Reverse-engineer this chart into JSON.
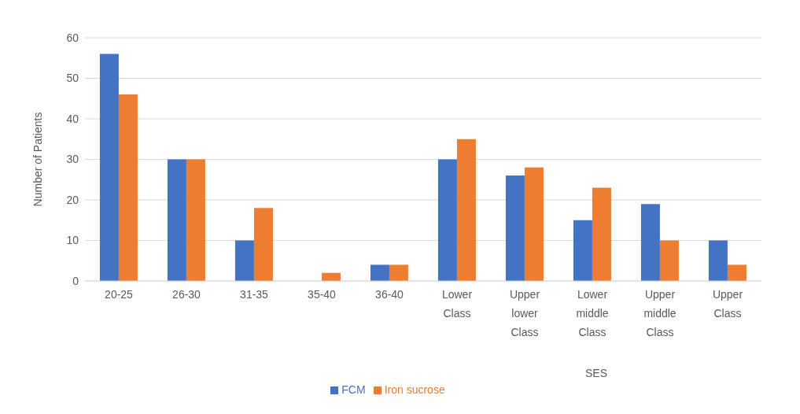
{
  "chart_data": {
    "type": "bar",
    "categories": [
      "20-25",
      "26-30",
      "31-35",
      "35-40",
      "36-40",
      "Lower Class",
      "Upper lower Class",
      "Lower middle Class",
      "Upper middle Class",
      "Upper Class"
    ],
    "series": [
      {
        "name": "FCM",
        "color": "#4472c4",
        "values": [
          56,
          30,
          10,
          0,
          4,
          30,
          26,
          15,
          19,
          10
        ]
      },
      {
        "name": "Iron sucrose",
        "color": "#ed7d31",
        "values": [
          46,
          30,
          18,
          2,
          4,
          35,
          28,
          23,
          10,
          4
        ]
      }
    ],
    "ylabel": "Number of Patients",
    "xlabel": "SES",
    "ylim": [
      0,
      60
    ],
    "yticks": [
      0,
      10,
      20,
      30,
      40,
      50,
      60
    ],
    "grid": "y",
    "legend": "bottom"
  }
}
